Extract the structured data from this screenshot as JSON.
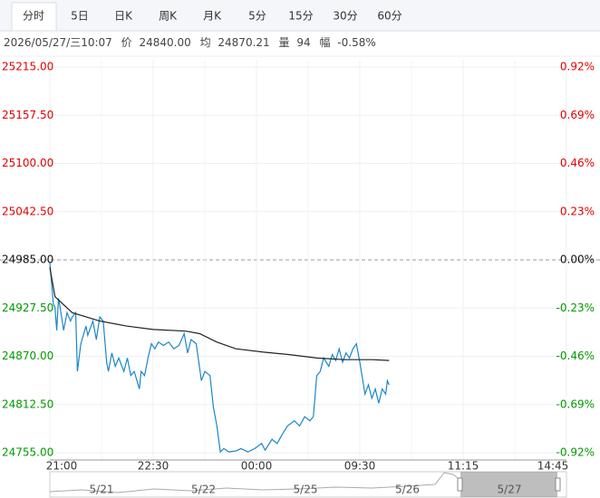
{
  "tabs": [
    "分时",
    "5日",
    "日K",
    "周K",
    "月K",
    "5分",
    "15分",
    "30分",
    "60分"
  ],
  "info": {
    "time": "2026/05/27/三10:07",
    "price_label": "价",
    "price": "24840.00",
    "avg_label": "均",
    "avg": "24870.21",
    "volume_label": "量",
    "volume": "94",
    "change_label": "幅",
    "change": "-0.58%"
  },
  "chart_data": {
    "type": "line",
    "series": [
      {
        "color": "#1a87c9",
        "x": [
          0,
          2,
          3,
          4,
          5,
          6,
          8,
          10,
          12,
          13,
          15,
          16,
          18,
          21,
          22,
          25,
          27,
          29,
          31,
          33,
          34,
          36,
          38,
          40,
          43,
          45,
          47,
          49,
          52,
          53,
          55,
          57,
          59,
          61,
          63,
          66,
          69,
          72,
          75,
          78,
          80,
          82,
          85,
          88,
          90,
          93,
          95,
          97,
          99,
          101,
          104,
          108,
          111,
          115,
          117,
          119,
          123,
          125,
          129,
          132,
          135,
          138,
          142,
          145,
          148,
          151,
          153,
          155,
          157,
          159,
          162,
          164,
          166,
          168,
          170,
          172,
          174,
          176,
          178,
          180,
          183,
          185,
          187,
          189,
          191,
          193,
          195,
          196,
          197
        ],
        "values": [
          24982,
          24933,
          24928,
          24901,
          24939,
          24928,
          24901,
          24922,
          24912,
          24917,
          24922,
          24852,
          24885,
          24906,
          24895,
          24912,
          24890,
          24917,
          24912,
          24863,
          24852,
          24874,
          24858,
          24868,
          24852,
          24868,
          24847,
          24852,
          24831,
          24852,
          24847,
          24868,
          24885,
          24879,
          24887,
          24883,
          24887,
          24879,
          24883,
          24897,
          24874,
          24890,
          24885,
          24841,
          24852,
          24847,
          24809,
          24787,
          24756,
          24760,
          24756,
          24757,
          24760,
          24756,
          24758,
          24760,
          24766,
          24758,
          24771,
          24766,
          24777,
          24787,
          24793,
          24787,
          24798,
          24793,
          24798,
          24847,
          24852,
          24868,
          24858,
          24872,
          24865,
          24879,
          24863,
          24874,
          24868,
          24879,
          24885,
          24863,
          24825,
          24836,
          24820,
          24831,
          24814,
          24831,
          24825,
          24841,
          24836
        ]
      },
      {
        "color": "#222222",
        "x": [
          0,
          3,
          13,
          29,
          45,
          60,
          79,
          87,
          97,
          108,
          124,
          139,
          155,
          171,
          187,
          197
        ],
        "values": [
          24976,
          24941,
          24922,
          24912,
          24906,
          24902,
          24900,
          24897,
          24887,
          24879,
          24875,
          24872,
          24868,
          24866,
          24866,
          24865
        ]
      }
    ],
    "xlim": [
      0,
      300
    ],
    "xticks": [
      {
        "value": 0,
        "label": "21:00"
      },
      {
        "value": 60,
        "label": "22:30"
      },
      {
        "value": 120,
        "label": "00:00"
      },
      {
        "value": 180,
        "label": "09:30"
      },
      {
        "value": 240,
        "label": "11:15"
      },
      {
        "value": 300,
        "label": "14:45"
      }
    ],
    "ylim": [
      24755,
      25215
    ],
    "yticks": [
      {
        "value": 25215,
        "label": "25215.00",
        "color": "#e00000"
      },
      {
        "value": 25157.5,
        "label": "25157.50",
        "color": "#e00000"
      },
      {
        "value": 25100,
        "label": "25100.00",
        "color": "#e00000"
      },
      {
        "value": 25042.5,
        "label": "25042.50",
        "color": "#e00000"
      },
      {
        "value": 24985,
        "label": "24985.00",
        "color": "#111111",
        "style": "dashed"
      },
      {
        "value": 24927.5,
        "label": "24927.50",
        "color": "#009900"
      },
      {
        "value": 24870,
        "label": "24870.00",
        "color": "#009900"
      },
      {
        "value": 24812.5,
        "label": "24812.50",
        "color": "#009900"
      },
      {
        "value": 24755,
        "label": "24755.00",
        "color": "#009900"
      }
    ],
    "y2lim": [
      -0.92,
      0.92
    ],
    "y2ticks": [
      {
        "value": 0.92,
        "label": "0.92%",
        "color": "#e00000"
      },
      {
        "value": 0.69,
        "label": "0.69%",
        "color": "#e00000"
      },
      {
        "value": 0.46,
        "label": "0.46%",
        "color": "#e00000"
      },
      {
        "value": 0.23,
        "label": "0.23%",
        "color": "#e00000"
      },
      {
        "value": 0,
        "label": "0.00%",
        "color": "#111111"
      },
      {
        "value": -0.23,
        "label": "-0.23%",
        "color": "#009900"
      },
      {
        "value": -0.46,
        "label": "-0.46%",
        "color": "#009900"
      },
      {
        "value": -0.69,
        "label": "-0.69%",
        "color": "#009900"
      },
      {
        "value": -0.92,
        "label": "-0.92%",
        "color": "#009900"
      }
    ],
    "grid": true
  },
  "navigator": {
    "dates": [
      "5/21",
      "5/22",
      "5/25",
      "5/26",
      "5/27"
    ]
  }
}
